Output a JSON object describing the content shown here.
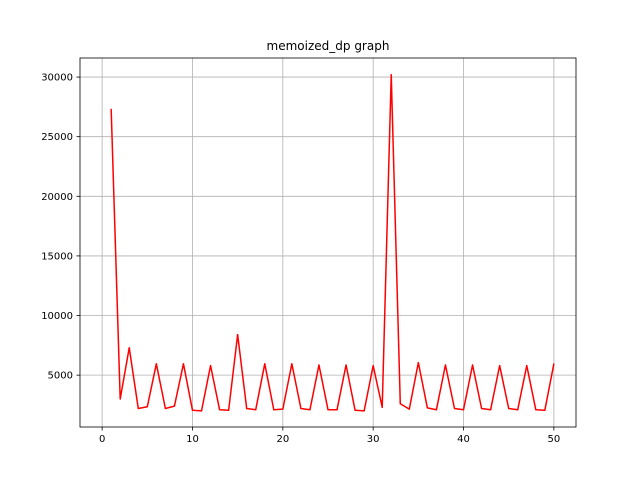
{
  "chart_data": {
    "type": "line",
    "title": "memoized_dp graph",
    "xlabel": "",
    "ylabel": "",
    "xlim": [
      -2.45,
      52.45
    ],
    "ylim": [
      650,
      31600
    ],
    "x_ticks": [
      0,
      10,
      20,
      30,
      40,
      50
    ],
    "y_ticks": [
      5000,
      10000,
      15000,
      20000,
      25000,
      30000
    ],
    "grid": true,
    "line_color": "#ff0000",
    "series": [
      {
        "x": [
          1,
          2,
          3,
          4,
          5,
          6,
          7,
          8,
          9,
          10,
          11,
          12,
          13,
          14,
          15,
          16,
          17,
          18,
          19,
          20,
          21,
          22,
          23,
          24,
          25,
          26,
          27,
          28,
          29,
          30,
          31,
          32,
          33,
          34,
          35,
          36,
          37,
          38,
          39,
          40,
          41,
          42,
          43,
          44,
          45,
          46,
          47,
          48,
          49,
          50
        ],
        "values": [
          27300,
          3000,
          7300,
          2200,
          2350,
          5950,
          2200,
          2400,
          5950,
          2050,
          2000,
          5800,
          2100,
          2050,
          8400,
          2200,
          2100,
          5950,
          2100,
          2150,
          5950,
          2200,
          2100,
          5850,
          2100,
          2100,
          5850,
          2050,
          2000,
          5800,
          2300,
          30200,
          2600,
          2150,
          6050,
          2250,
          2100,
          5850,
          2200,
          2100,
          5850,
          2200,
          2100,
          5800,
          2200,
          2100,
          5800,
          2100,
          2050,
          5950
        ]
      }
    ]
  }
}
